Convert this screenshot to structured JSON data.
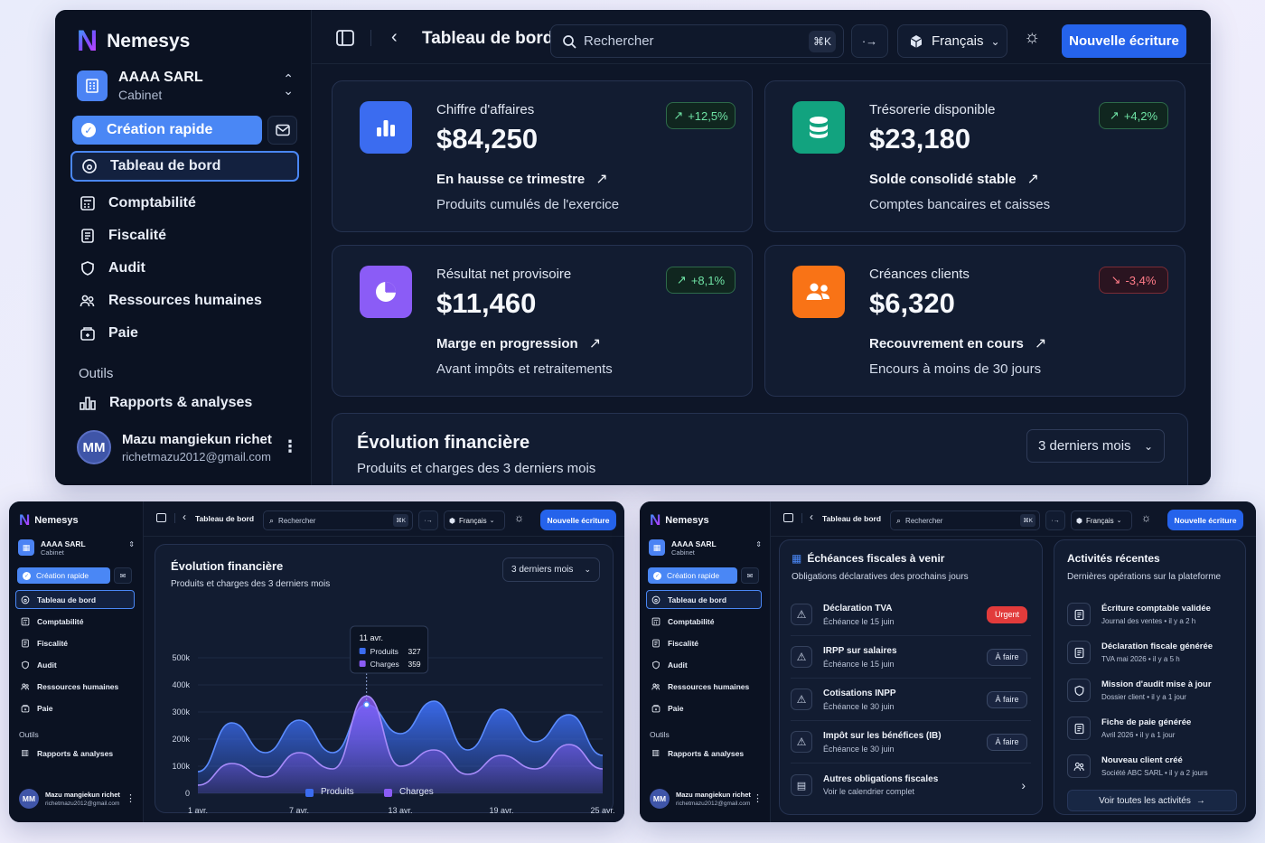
{
  "app": {
    "name": "Nemesys",
    "org_name": "AAAA SARL",
    "org_type": "Cabinet",
    "user_initials": "MM",
    "user_name": "Mazu mangiekun richet",
    "user_email": "richetmazu2012@gmail.com"
  },
  "sidebar": {
    "quick_create": "Création rapide",
    "items": [
      {
        "label": "Tableau de bord",
        "icon": "dashboard-icon"
      },
      {
        "label": "Comptabilité",
        "icon": "calculator-icon"
      },
      {
        "label": "Fiscalité",
        "icon": "document-icon"
      },
      {
        "label": "Audit",
        "icon": "shield-icon"
      },
      {
        "label": "Ressources humaines",
        "icon": "users-icon"
      },
      {
        "label": "Paie",
        "icon": "wallet-icon"
      }
    ],
    "tools_section": "Outils",
    "tools": [
      {
        "label": "Rapports & analyses",
        "icon": "chart-icon"
      }
    ]
  },
  "header": {
    "title": "Tableau de bord",
    "search_placeholder": "Rechercher",
    "language": "Français",
    "new_entry": "Nouvelle écriture"
  },
  "kpis": [
    {
      "title": "Chiffre d'affaires",
      "value": "$84,250",
      "delta": "+12,5%",
      "trend": "up",
      "headline": "En hausse ce trimestre",
      "sub": "Produits cumulés de l'exercice",
      "color": "#3b6cf0"
    },
    {
      "title": "Trésorerie disponible",
      "value": "$23,180",
      "delta": "+4,2%",
      "trend": "up",
      "headline": "Solde consolidé stable",
      "sub": "Comptes bancaires et caisses",
      "color": "#12a37f"
    },
    {
      "title": "Résultat net provisoire",
      "value": "$11,460",
      "delta": "+8,1%",
      "trend": "up",
      "headline": "Marge en progression",
      "sub": "Avant impôts et retraitements",
      "color": "#8b5cf6"
    },
    {
      "title": "Créances clients",
      "value": "$6,320",
      "delta": "-3,4%",
      "trend": "down",
      "headline": "Recouvrement en cours",
      "sub": "Encours à moins de 30 jours",
      "color": "#f97316"
    }
  ],
  "evolution": {
    "title": "Évolution financière",
    "subtitle": "Produits et charges des 3 derniers mois",
    "period": "3 derniers mois"
  },
  "chart_data": {
    "type": "area",
    "x": [
      "1 avr.",
      "3 avr.",
      "5 avr.",
      "7 avr.",
      "9 avr.",
      "11 avr.",
      "13 avr.",
      "15 avr.",
      "17 avr.",
      "19 avr.",
      "21 avr.",
      "23 avr.",
      "25 avr."
    ],
    "x_ticks": [
      "1 avr.",
      "7 avr.",
      "13 avr.",
      "19 avr.",
      "25 avr."
    ],
    "series": [
      {
        "name": "Produits",
        "values": [
          80,
          260,
          150,
          270,
          150,
          327,
          220,
          340,
          160,
          310,
          190,
          290,
          140
        ],
        "color": "#3b6cf0"
      },
      {
        "name": "Charges",
        "values": [
          30,
          110,
          60,
          150,
          90,
          359,
          100,
          160,
          70,
          140,
          90,
          180,
          90
        ],
        "color": "#8b5cf6"
      }
    ],
    "ylim": [
      0,
      500
    ],
    "y_ticks": [
      "500k",
      "400k",
      "300k",
      "200k",
      "100k",
      "0"
    ],
    "tooltip": {
      "date": "11 avr.",
      "rows": [
        {
          "name": "Produits",
          "value": "327"
        },
        {
          "name": "Charges",
          "value": "359"
        }
      ]
    },
    "legend": "bottom-center"
  },
  "deadlines": {
    "title": "Échéances fiscales à venir",
    "subtitle": "Obligations déclaratives des prochains jours",
    "items": [
      {
        "name": "Déclaration TVA",
        "due": "Échéance le 15 juin",
        "status": "Urgent"
      },
      {
        "name": "IRPP sur salaires",
        "due": "Échéance le 15 juin",
        "status": "À faire"
      },
      {
        "name": "Cotisations INPP",
        "due": "Échéance le 30 juin",
        "status": "À faire"
      },
      {
        "name": "Impôt sur les bénéfices (IB)",
        "due": "Échéance le 30 juin",
        "status": "À faire"
      }
    ],
    "other_title": "Autres obligations fiscales",
    "other_sub": "Voir le calendrier complet"
  },
  "activities": {
    "title": "Activités récentes",
    "subtitle": "Dernières opérations sur la plateforme",
    "items": [
      {
        "title": "Écriture comptable validée",
        "sub": "Journal des ventes • il y a 2 h"
      },
      {
        "title": "Déclaration fiscale générée",
        "sub": "TVA mai 2026 • il y a 5 h"
      },
      {
        "title": "Mission d'audit mise à jour",
        "sub": "Dossier client • il y a 1 jour"
      },
      {
        "title": "Fiche de paie générée",
        "sub": "Avril 2026 • il y a 1 jour"
      },
      {
        "title": "Nouveau client créé",
        "sub": "Société ABC SARL • il y a 2 jours"
      }
    ],
    "see_all": "Voir toutes les activités"
  }
}
